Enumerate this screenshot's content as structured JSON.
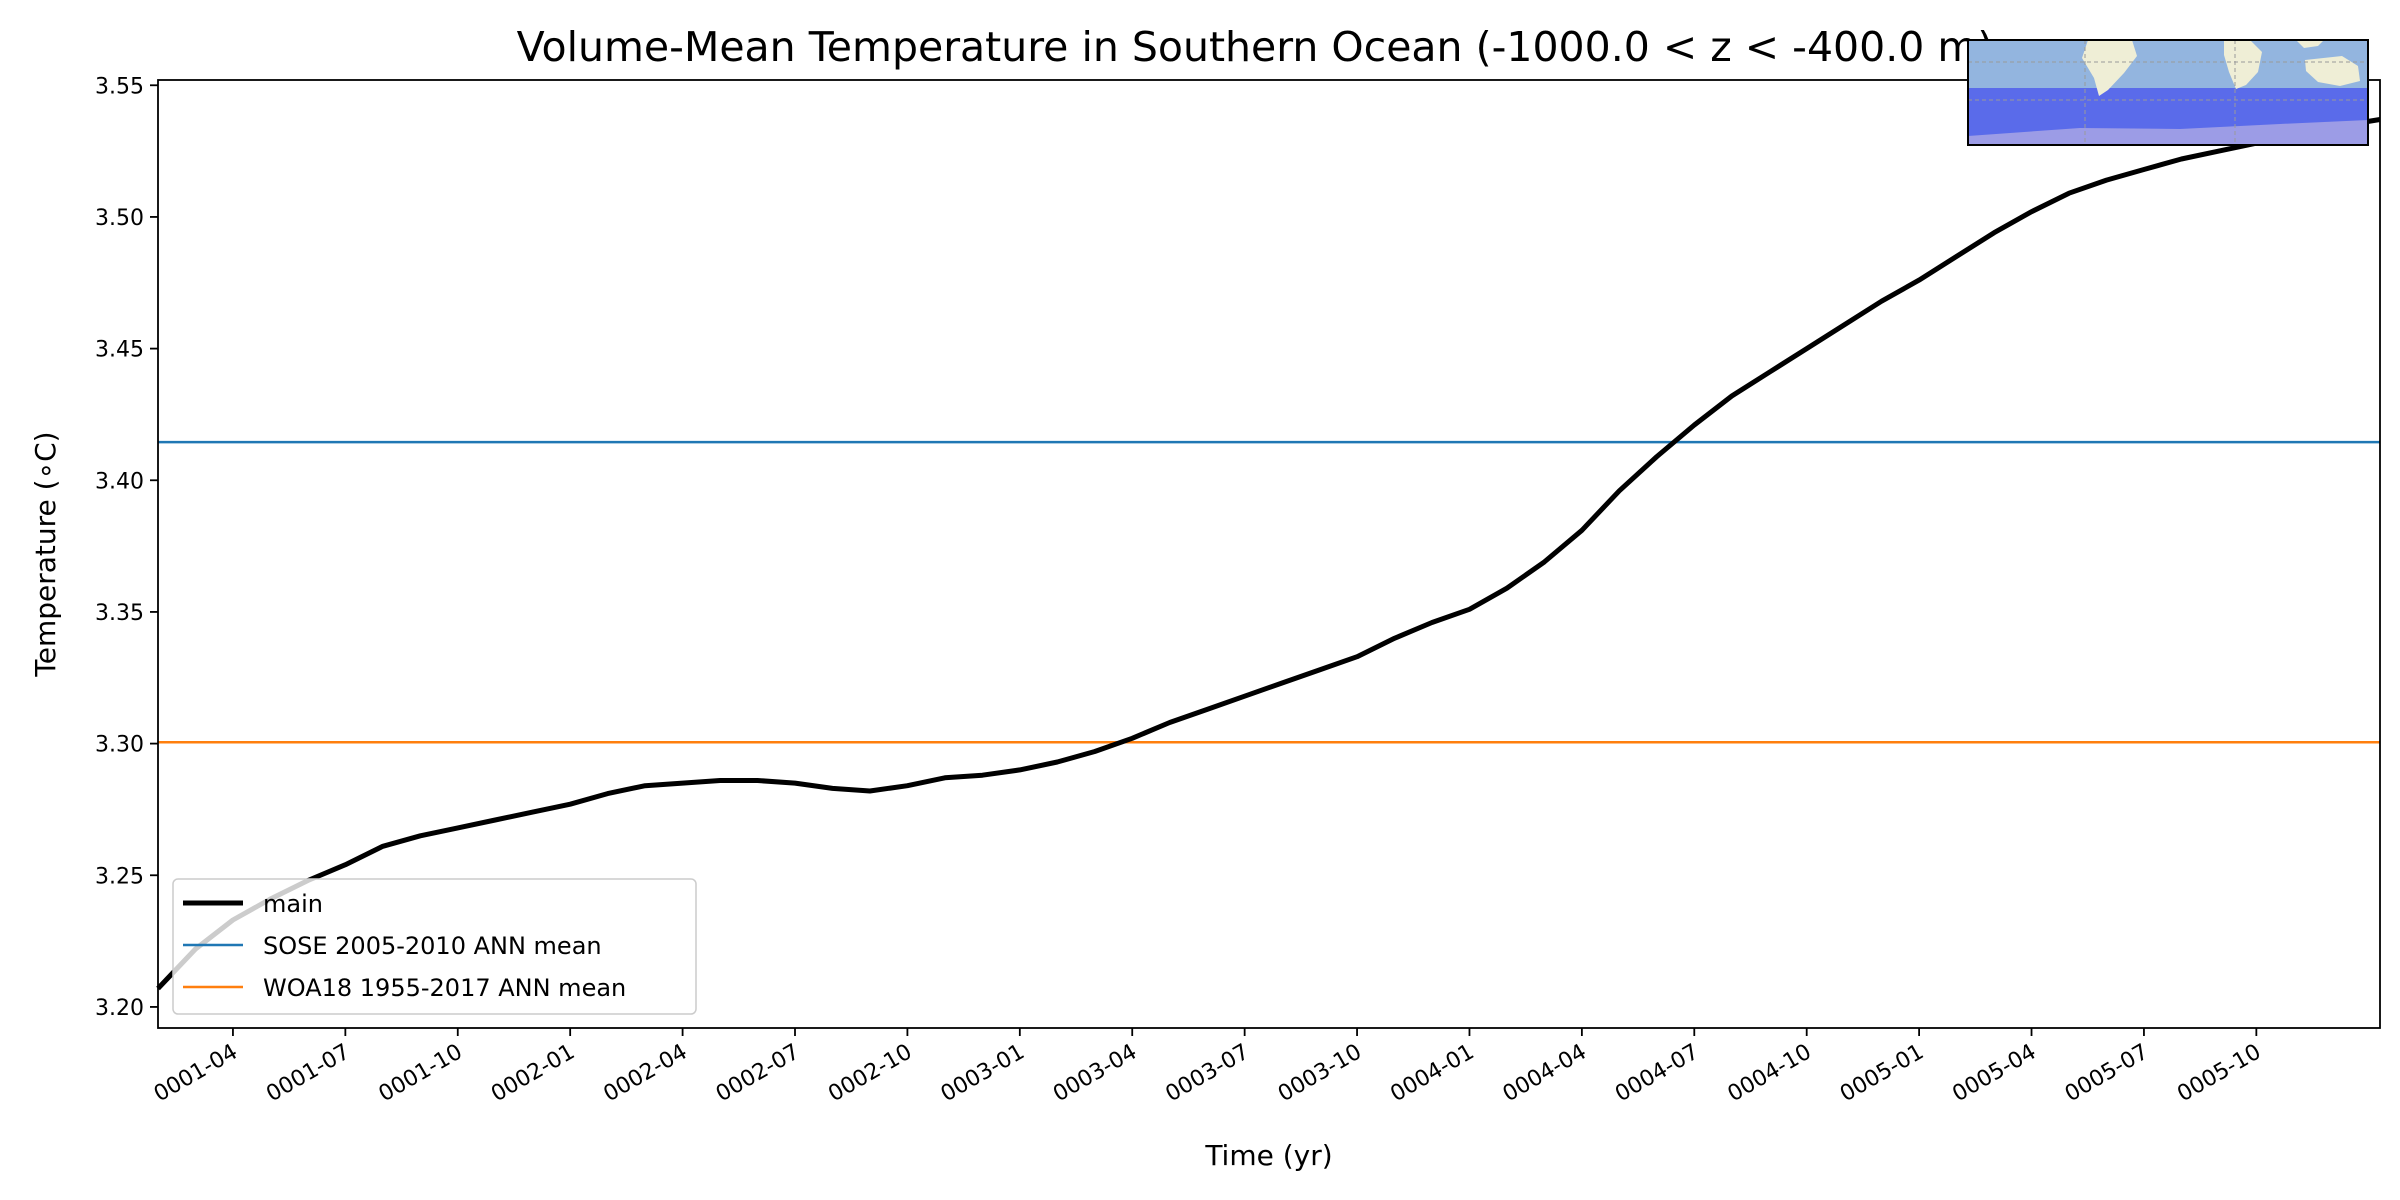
{
  "chart_data": {
    "type": "line",
    "title": "Volume-Mean Temperature in Southern Ocean (-1000.0 < z < -400.0 m)",
    "xlabel": "Time (yr)",
    "ylabel": "Temperature (∘C)",
    "ylim": [
      3.192,
      3.552
    ],
    "xlim": [
      0.0,
      59.3
    ],
    "x_ticks": [
      {
        "x": 2,
        "label": "0001-04"
      },
      {
        "x": 5,
        "label": "0001-07"
      },
      {
        "x": 8,
        "label": "0001-10"
      },
      {
        "x": 11,
        "label": "0002-01"
      },
      {
        "x": 14,
        "label": "0002-04"
      },
      {
        "x": 17,
        "label": "0002-07"
      },
      {
        "x": 20,
        "label": "0002-10"
      },
      {
        "x": 23,
        "label": "0003-01"
      },
      {
        "x": 26,
        "label": "0003-04"
      },
      {
        "x": 29,
        "label": "0003-07"
      },
      {
        "x": 32,
        "label": "0003-10"
      },
      {
        "x": 35,
        "label": "0004-01"
      },
      {
        "x": 38,
        "label": "0004-04"
      },
      {
        "x": 41,
        "label": "0004-07"
      },
      {
        "x": 44,
        "label": "0004-10"
      },
      {
        "x": 47,
        "label": "0005-01"
      },
      {
        "x": 50,
        "label": "0005-04"
      },
      {
        "x": 53,
        "label": "0005-07"
      },
      {
        "x": 56,
        "label": "0005-10"
      }
    ],
    "y_ticks": [
      {
        "y": 3.2,
        "label": "3.20"
      },
      {
        "y": 3.25,
        "label": "3.25"
      },
      {
        "y": 3.3,
        "label": "3.30"
      },
      {
        "y": 3.35,
        "label": "3.35"
      },
      {
        "y": 3.4,
        "label": "3.40"
      },
      {
        "y": 3.45,
        "label": "3.45"
      },
      {
        "y": 3.5,
        "label": "3.50"
      },
      {
        "y": 3.55,
        "label": "3.55"
      }
    ],
    "series": [
      {
        "name": "main",
        "color": "#000000",
        "x": [
          0,
          1,
          2,
          3,
          4,
          5,
          6,
          7,
          8,
          9,
          10,
          11,
          12,
          13,
          14,
          15,
          16,
          17,
          18,
          19,
          20,
          21,
          22,
          23,
          24,
          25,
          26,
          27,
          28,
          29,
          30,
          31,
          32,
          33,
          34,
          35,
          36,
          37,
          38,
          39,
          40,
          41,
          42,
          43,
          44,
          45,
          46,
          47,
          48,
          49,
          50,
          51,
          52,
          53,
          54,
          55,
          56,
          57,
          58,
          59.3
        ],
        "y": [
          3.207,
          3.222,
          3.233,
          3.241,
          3.248,
          3.254,
          3.261,
          3.265,
          3.268,
          3.271,
          3.274,
          3.277,
          3.281,
          3.284,
          3.285,
          3.286,
          3.286,
          3.285,
          3.283,
          3.282,
          3.284,
          3.287,
          3.288,
          3.29,
          3.293,
          3.297,
          3.302,
          3.308,
          3.313,
          3.318,
          3.323,
          3.328,
          3.333,
          3.34,
          3.346,
          3.351,
          3.359,
          3.369,
          3.381,
          3.396,
          3.409,
          3.421,
          3.432,
          3.441,
          3.45,
          3.459,
          3.468,
          3.476,
          3.485,
          3.494,
          3.502,
          3.509,
          3.514,
          3.518,
          3.522,
          3.525,
          3.528,
          3.531,
          3.534,
          3.537
        ]
      },
      {
        "name": "SOSE 2005-2010 ANN mean",
        "color": "#1f77b4",
        "constant": 3.4145
      },
      {
        "name": "WOA18 1955-2017 ANN mean",
        "color": "#ff7f0e",
        "constant": 3.3005
      }
    ],
    "legend": {
      "position": "lower-left",
      "entries": [
        "main",
        "SOSE 2005-2010 ANN mean",
        "WOA18 1955-2017 ANN mean"
      ]
    },
    "inset_map": {
      "position": "top-right",
      "colors": {
        "ocean": "#93b5df",
        "region": "#5a6bea",
        "land": "#efeed6"
      }
    }
  }
}
